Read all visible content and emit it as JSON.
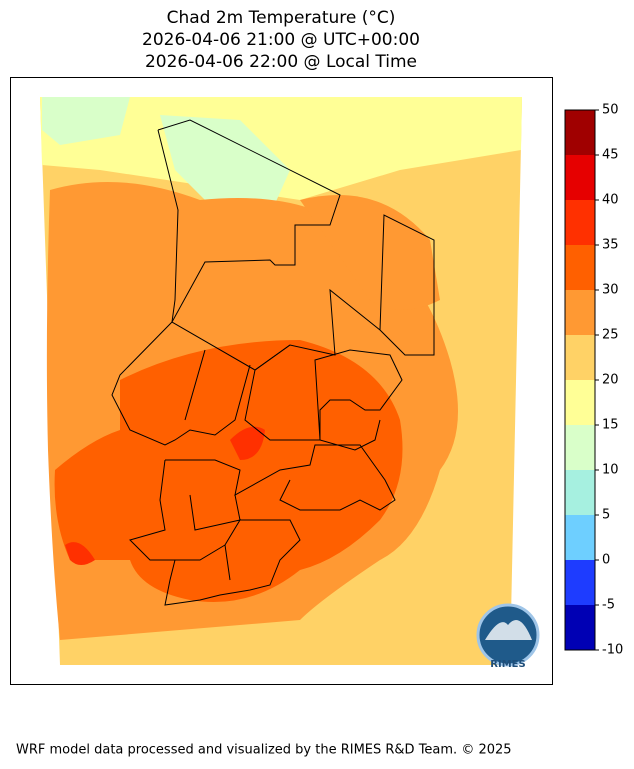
{
  "header": {
    "title_lines": [
      "Chad 2m Temperature (°C)",
      "2026-04-06 21:00 @ UTC+00:00",
      "2026-04-06 22:00 @ Local Time"
    ]
  },
  "colorbar": {
    "ticks": [
      -10,
      -5,
      0,
      5,
      10,
      15,
      20,
      25,
      30,
      35,
      40,
      45,
      50
    ],
    "colors": [
      "#0000b4",
      "#1e3cff",
      "#6ecfff",
      "#a6f0e0",
      "#d9ffc9",
      "#ffff96",
      "#ffd266",
      "#ff9933",
      "#ff6000",
      "#ff3000",
      "#e60000",
      "#a00000"
    ]
  },
  "logo": {
    "text": "RIMES"
  },
  "footer": {
    "text": "WRF model data processed and visualized by the RIMES R&D Team. © 2025"
  }
}
